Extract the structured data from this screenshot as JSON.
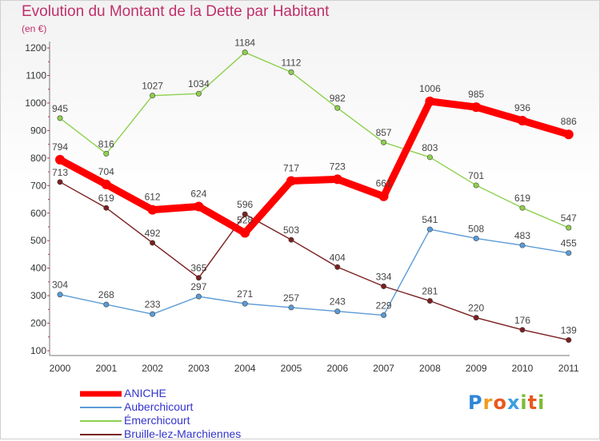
{
  "chart_data": {
    "type": "line",
    "title": "Evolution du Montant de la Dette par Habitant",
    "subtitle": "(en €)",
    "categories": [
      "2000",
      "2001",
      "2002",
      "2003",
      "2004",
      "2005",
      "2006",
      "2007",
      "2008",
      "2009",
      "2010",
      "2011"
    ],
    "ylim": [
      100,
      1200
    ],
    "yticks": [
      100,
      200,
      300,
      400,
      500,
      600,
      700,
      800,
      900,
      1000,
      1100,
      1200
    ],
    "grid": false,
    "legend_position": "bottom-left",
    "series": [
      {
        "name": "ANICHE",
        "color": "#ff0000",
        "emphasis": true,
        "values": [
          794,
          704,
          612,
          624,
          528,
          717,
          723,
          661,
          1006,
          985,
          936,
          886
        ]
      },
      {
        "name": "Auberchicourt",
        "color": "#5b9bd5",
        "values": [
          304,
          268,
          233,
          297,
          271,
          257,
          243,
          229,
          541,
          508,
          483,
          455
        ]
      },
      {
        "name": "Émerchicourt",
        "color": "#8ed04e",
        "values": [
          945,
          816,
          1027,
          1034,
          1184,
          1112,
          982,
          857,
          803,
          701,
          619,
          547
        ]
      },
      {
        "name": "Bruille-lez-Marchiennes",
        "color": "#7a1f1f",
        "values": [
          713,
          619,
          492,
          365,
          596,
          503,
          404,
          334,
          281,
          220,
          176,
          139
        ]
      }
    ]
  },
  "logo": {
    "letters": [
      "P",
      "r",
      "o",
      "x",
      "i",
      "t",
      "i"
    ]
  }
}
